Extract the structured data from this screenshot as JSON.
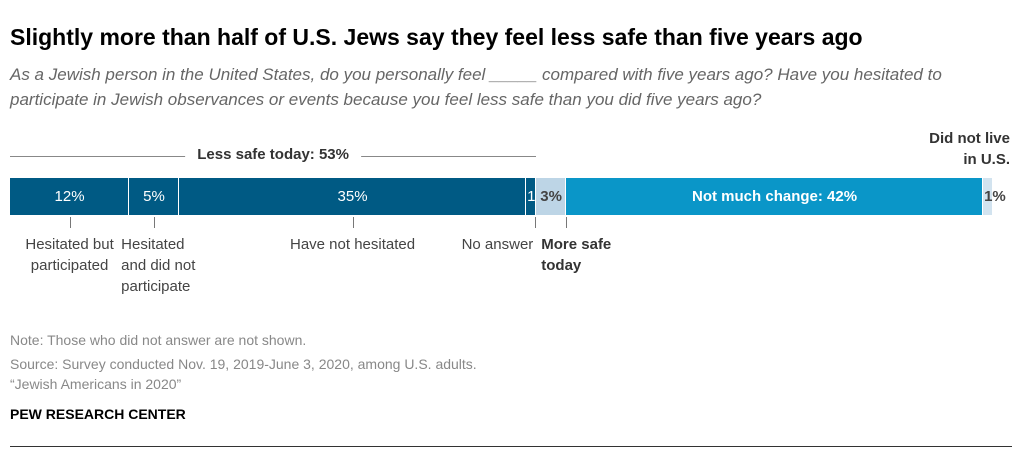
{
  "title": "Slightly more than half of U.S. Jews say they feel less safe than five years ago",
  "subtitle": "As a Jewish person in the United States, do you personally feel _____ compared with five years ago? Have you hesitated to participate in Jewish observances or events because you feel less safe than you did five years ago?",
  "chart_data": {
    "type": "stacked-bar",
    "categories": [
      "Hesitated but participated",
      "Hesitated and did not participate",
      "Have not hesitated",
      "No answer",
      "More safe today",
      null,
      "Did not live in U.S."
    ],
    "values": [
      12,
      5,
      35,
      1,
      3,
      42,
      1
    ],
    "value_labels": [
      "12%",
      "5%",
      "35%",
      "1",
      "3%",
      "Not much change: 42%",
      "1%"
    ],
    "colors": [
      "#005a84",
      "#005a84",
      "#005a84",
      "#005a84",
      "#bdd5e6",
      "#0a96c8",
      "#d2e3ef"
    ],
    "groups": [
      {
        "label": "Less safe today: 53%",
        "value": 53
      }
    ]
  },
  "note": "Note: Those who did not answer are not shown.",
  "source": "Source: Survey conducted Nov. 19, 2019-June 3, 2020, among U.S. adults.",
  "report": "“Jewish Americans in 2020”",
  "brand": "PEW RESEARCH CENTER"
}
